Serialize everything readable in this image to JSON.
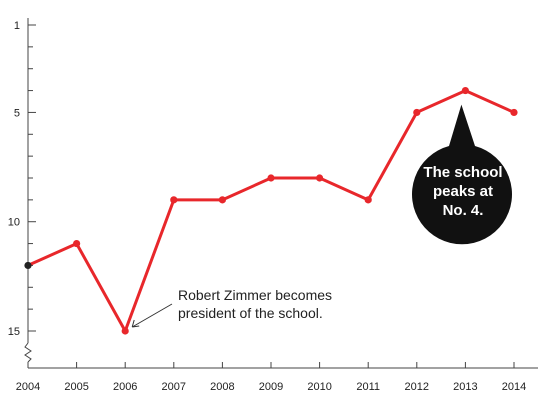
{
  "chart_data": {
    "type": "line",
    "x": [
      2004,
      2005,
      2006,
      2007,
      2008,
      2009,
      2010,
      2011,
      2012,
      2013,
      2014
    ],
    "series": [
      {
        "values": [
          12,
          11,
          15,
          9,
          9,
          8,
          8,
          9,
          5,
          4,
          5
        ]
      }
    ],
    "x_tick_labels": [
      "2004",
      "2005",
      "2006",
      "2007",
      "2008",
      "2009",
      "2010",
      "2011",
      "2012",
      "2013",
      "2014"
    ],
    "y_tick_labels": [
      "1",
      "5",
      "10",
      "15"
    ],
    "y_ticks": [
      1,
      5,
      10,
      15
    ],
    "ylim": [
      1,
      15
    ],
    "y_inverted": true,
    "y_axis_break": true,
    "grid": false,
    "colors": {
      "line": "#e8272b",
      "first_point": "#222222",
      "axis": "#444444",
      "bubble": "#111111",
      "bubble_text": "#ffffff"
    },
    "annotations": [
      {
        "text_lines": [
          "Robert Zimmer becomes",
          "president of the school."
        ],
        "x": 2006,
        "y": 15
      },
      {
        "text_lines": [
          "The school",
          "peaks at",
          "No. 4."
        ],
        "x": 2013,
        "y": 4,
        "style": "speech-bubble"
      }
    ]
  }
}
